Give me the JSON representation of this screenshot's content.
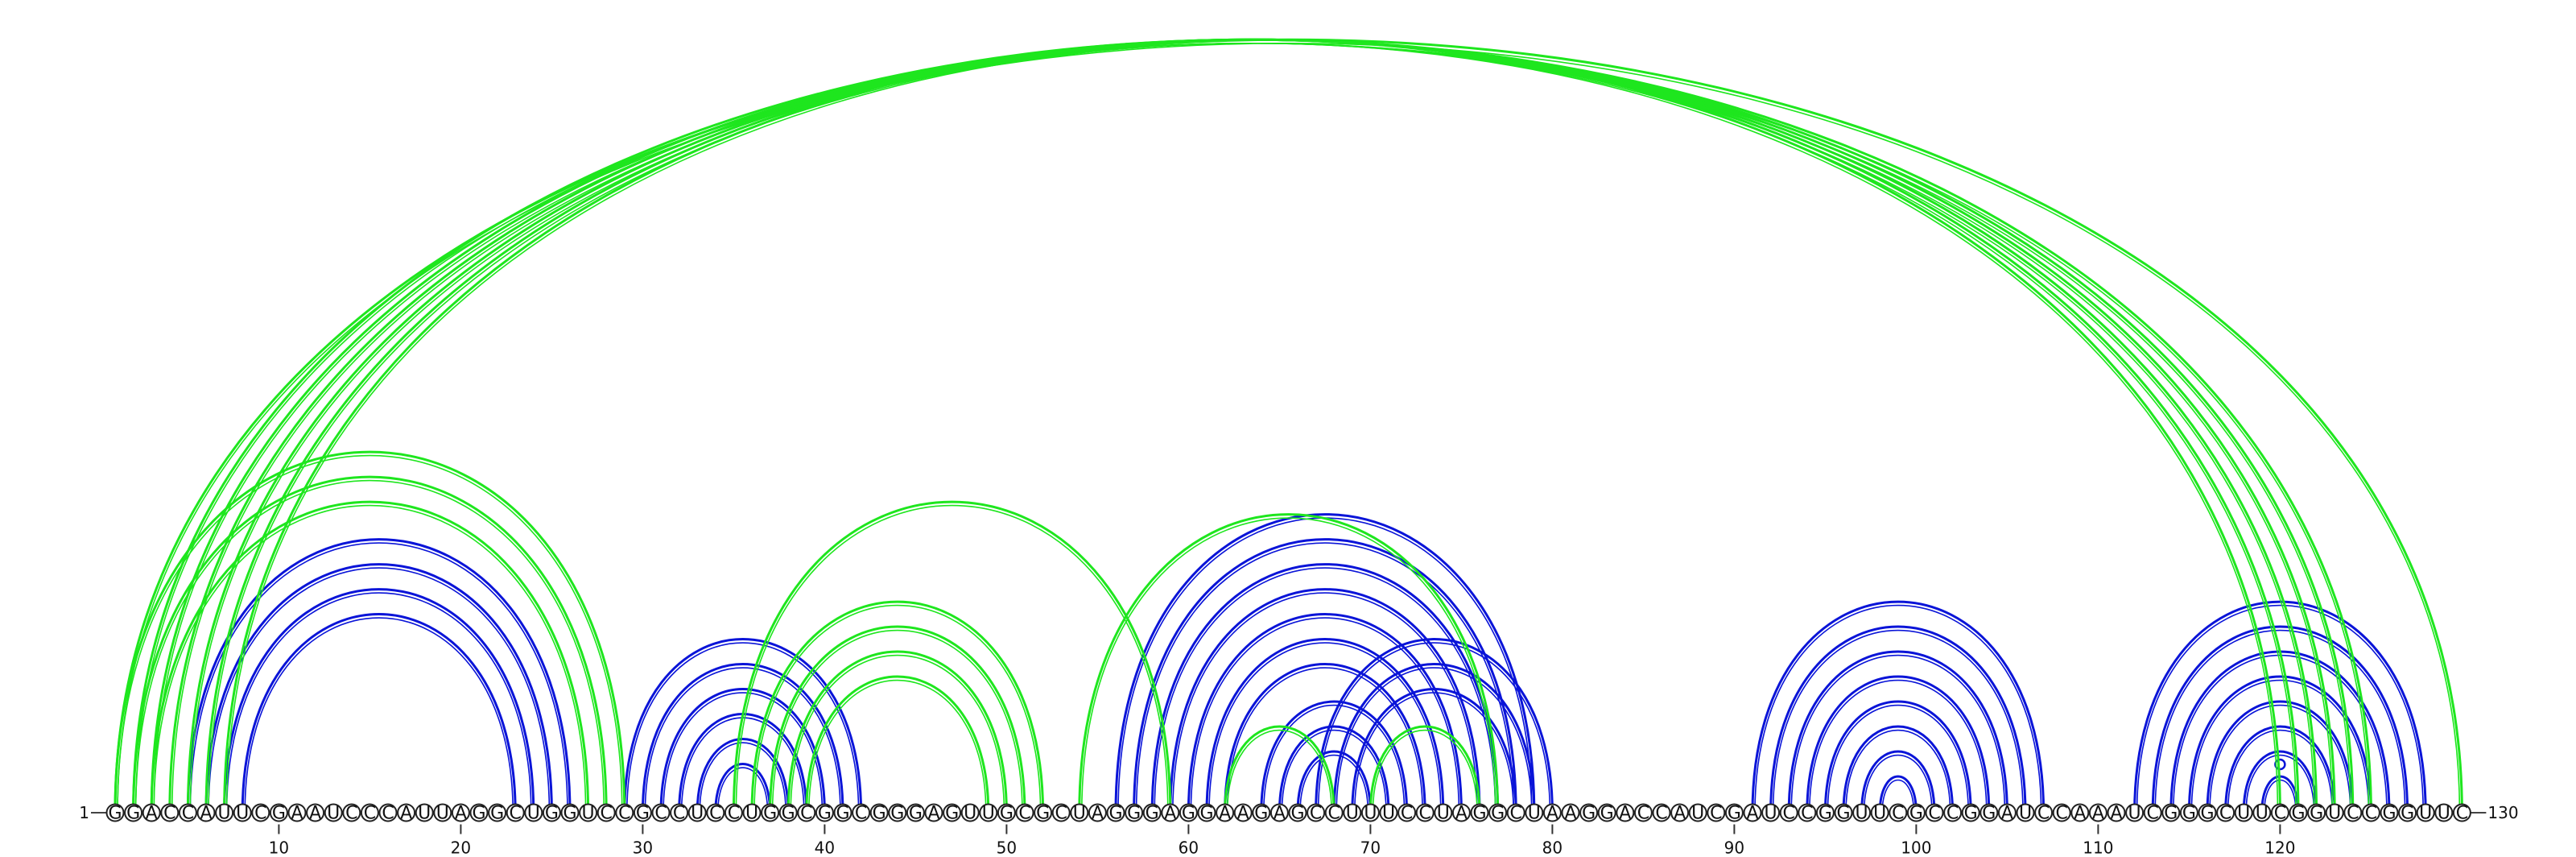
{
  "sequence": "GGACCAUUCGAAUCCCAUUAGGCUGGUCCGCCUCCUGGCGGCGGGAGUUGCGCUAGGGAGGAAGAGCCUUUCCUAGGCUAAGGACCAUCGAUCCGGUUCGCCGGAUCCAAAUCGGGCUUCGGUCCGGUUC",
  "start_label": "1",
  "end_label": "130",
  "ticks": [
    {
      "pos": 10,
      "label": "10"
    },
    {
      "pos": 20,
      "label": "20"
    },
    {
      "pos": 30,
      "label": "30"
    },
    {
      "pos": 40,
      "label": "40"
    },
    {
      "pos": 50,
      "label": "50"
    },
    {
      "pos": 60,
      "label": "60"
    },
    {
      "pos": 70,
      "label": "70"
    },
    {
      "pos": 80,
      "label": "80"
    },
    {
      "pos": 90,
      "label": "90"
    },
    {
      "pos": 100,
      "label": "100"
    },
    {
      "pos": 110,
      "label": "110"
    },
    {
      "pos": 120,
      "label": "120"
    }
  ],
  "colors": {
    "structure_a": "#0a14d8",
    "structure_b": "#1ee61e"
  },
  "chart_data": {
    "type": "arc-diagram",
    "description_units": "nucleotide positions 1-130",
    "series": [
      {
        "color": "structure_a",
        "pairs": [
          [
            5,
            26
          ],
          [
            6,
            25
          ],
          [
            7,
            24
          ],
          [
            8,
            23
          ],
          [
            29,
            42
          ],
          [
            30,
            41
          ],
          [
            31,
            40
          ],
          [
            32,
            39
          ],
          [
            33,
            38
          ],
          [
            34,
            37
          ],
          [
            56,
            79
          ],
          [
            57,
            78
          ],
          [
            58,
            77
          ],
          [
            59,
            76
          ],
          [
            60,
            75
          ],
          [
            61,
            74
          ],
          [
            62,
            73
          ],
          [
            64,
            72
          ],
          [
            65,
            71
          ],
          [
            66,
            70
          ],
          [
            67,
            80
          ],
          [
            68,
            79
          ],
          [
            69,
            78
          ],
          [
            91,
            107
          ],
          [
            92,
            106
          ],
          [
            93,
            105
          ],
          [
            94,
            104
          ],
          [
            95,
            103
          ],
          [
            96,
            102
          ],
          [
            97,
            101
          ],
          [
            98,
            100
          ],
          [
            112,
            128
          ],
          [
            113,
            127
          ],
          [
            114,
            126
          ],
          [
            115,
            125
          ],
          [
            116,
            124
          ],
          [
            117,
            123
          ],
          [
            118,
            122
          ],
          [
            119,
            121
          ],
          [
            120,
            120
          ]
        ]
      },
      {
        "color": "structure_b",
        "pairs": [
          [
            1,
            130
          ],
          [
            2,
            125
          ],
          [
            3,
            124
          ],
          [
            4,
            123
          ],
          [
            5,
            122
          ],
          [
            6,
            121
          ],
          [
            7,
            120
          ],
          [
            1,
            29
          ],
          [
            2,
            28
          ],
          [
            3,
            27
          ],
          [
            35,
            59
          ],
          [
            36,
            52
          ],
          [
            37,
            51
          ],
          [
            38,
            50
          ],
          [
            39,
            49
          ],
          [
            54,
            77
          ],
          [
            62,
            68
          ],
          [
            70,
            76
          ]
        ]
      }
    ]
  }
}
